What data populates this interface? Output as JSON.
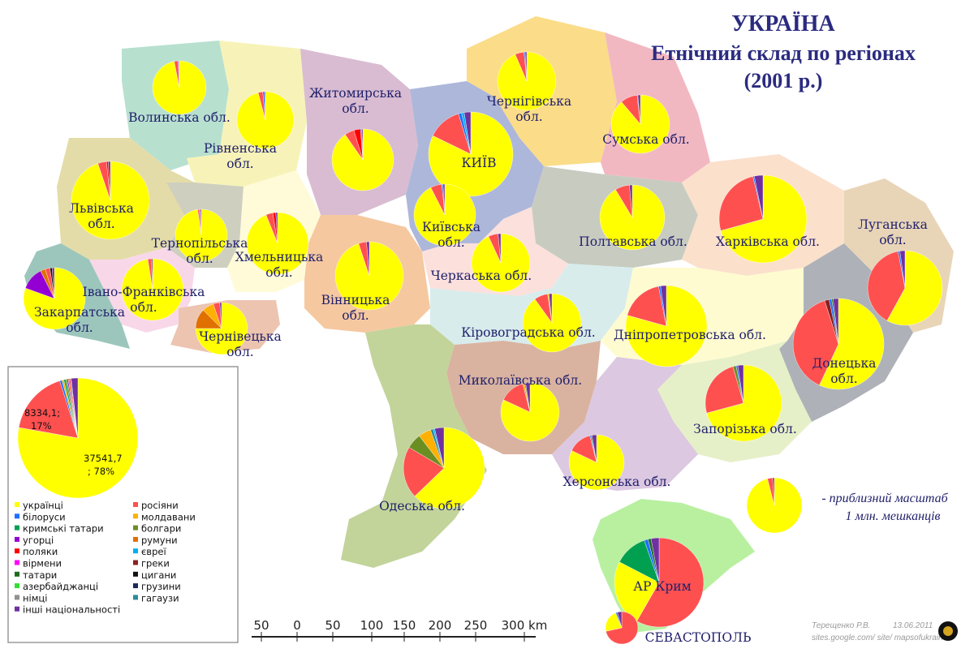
{
  "title": {
    "line1": "УКРАЇНА",
    "line2": "Етнічний склад по регіонах",
    "line3": "(2001 р.)"
  },
  "colors": {
    "українці": "#ffff00",
    "росіяни": "#ff5050",
    "білоруси": "#1f6fff",
    "молдавани": "#ffb000",
    "кримські татари": "#00a050",
    "болгари": "#6b8e23",
    "угорці": "#9400d3",
    "румуни": "#e07000",
    "поляки": "#ff0000",
    "євреї": "#00b0f0",
    "вірмени": "#ff00ff",
    "греки": "#8b2020",
    "татари": "#1e6b1e",
    "цигани": "#111111",
    "азербайджанці": "#33dd33",
    "грузини": "#1a2a5a",
    "німці": "#909090",
    "гагаузи": "#2e8b9a",
    "інші національності": "#7030a0"
  },
  "regions": [
    {
      "name": "Волинська обл.",
      "pie": "Волинська обл.",
      "label_lines": [
        "Волинська обл."
      ],
      "slices": [
        {
          "g": "українці",
          "v": 96.9
        },
        {
          "g": "росіяни",
          "v": 2.4
        },
        {
          "g": "білоруси",
          "v": 0.3
        },
        {
          "g": "інші національності",
          "v": 0.4
        }
      ]
    },
    {
      "name": "Рівненська обл.",
      "label_lines": [
        "Рівненська",
        "обл."
      ],
      "slices": [
        {
          "g": "українці",
          "v": 95.9
        },
        {
          "g": "росіяни",
          "v": 2.6
        },
        {
          "g": "білоруси",
          "v": 1.0
        },
        {
          "g": "інші національності",
          "v": 0.5
        }
      ]
    },
    {
      "name": "Житомирська обл.",
      "label_lines": [
        "Житомирська",
        "обл."
      ],
      "slices": [
        {
          "g": "українці",
          "v": 90.3
        },
        {
          "g": "росіяни",
          "v": 5.0
        },
        {
          "g": "поляки",
          "v": 3.5
        },
        {
          "g": "білоруси",
          "v": 0.6
        },
        {
          "g": "інші національності",
          "v": 0.6
        }
      ]
    },
    {
      "name": "Київ",
      "label_lines": [
        "КИЇВ"
      ],
      "slices": [
        {
          "g": "українці",
          "v": 82.2
        },
        {
          "g": "росіяни",
          "v": 13.1
        },
        {
          "g": "білоруси",
          "v": 1.2
        },
        {
          "g": "євреї",
          "v": 1.0
        },
        {
          "g": "інші національності",
          "v": 2.5
        }
      ]
    },
    {
      "name": "Чернігівська обл.",
      "label_lines": [
        "Чернігівська",
        "обл."
      ],
      "slices": [
        {
          "g": "українці",
          "v": 93.5
        },
        {
          "g": "росіяни",
          "v": 5.0
        },
        {
          "g": "білоруси",
          "v": 0.6
        },
        {
          "g": "інші національності",
          "v": 0.9
        }
      ]
    },
    {
      "name": "Сумська обл.",
      "label_lines": [
        "Сумська обл."
      ],
      "slices": [
        {
          "g": "українці",
          "v": 88.8
        },
        {
          "g": "росіяни",
          "v": 9.4
        },
        {
          "g": "білоруси",
          "v": 0.4
        },
        {
          "g": "інші національності",
          "v": 1.4
        }
      ]
    },
    {
      "name": "Львівська обл.",
      "label_lines": [
        "Львівська",
        "обл."
      ],
      "slices": [
        {
          "g": "українці",
          "v": 94.8
        },
        {
          "g": "росіяни",
          "v": 3.6
        },
        {
          "g": "поляки",
          "v": 0.7
        },
        {
          "g": "інші національності",
          "v": 0.9
        }
      ]
    },
    {
      "name": "Тернопільська обл.",
      "label_lines": [
        "Тернопільська",
        "обл."
      ],
      "slices": [
        {
          "g": "українці",
          "v": 97.8
        },
        {
          "g": "росіяни",
          "v": 1.2
        },
        {
          "g": "поляки",
          "v": 0.3
        },
        {
          "g": "інші національності",
          "v": 0.7
        }
      ]
    },
    {
      "name": "Хмельницька обл.",
      "label_lines": [
        "Хмельницька",
        "обл."
      ],
      "slices": [
        {
          "g": "українці",
          "v": 93.9
        },
        {
          "g": "росіяни",
          "v": 3.6
        },
        {
          "g": "поляки",
          "v": 1.6
        },
        {
          "g": "інші національності",
          "v": 0.9
        }
      ]
    },
    {
      "name": "Київська обл.",
      "label_lines": [
        "Київська",
        "обл."
      ],
      "slices": [
        {
          "g": "українці",
          "v": 92.5
        },
        {
          "g": "росіяни",
          "v": 6.0
        },
        {
          "g": "білоруси",
          "v": 0.6
        },
        {
          "g": "інші національності",
          "v": 0.9
        }
      ]
    },
    {
      "name": "Полтавська обл.",
      "label_lines": [
        "Полтавська обл."
      ],
      "slices": [
        {
          "g": "українці",
          "v": 91.4
        },
        {
          "g": "росіяни",
          "v": 7.2
        },
        {
          "g": "інші національності",
          "v": 1.4
        }
      ]
    },
    {
      "name": "Харківська обл.",
      "label_lines": [
        "Харківська обл."
      ],
      "slices": [
        {
          "g": "українці",
          "v": 70.7
        },
        {
          "g": "росіяни",
          "v": 25.6
        },
        {
          "g": "білоруси",
          "v": 0.5
        },
        {
          "g": "інші національності",
          "v": 3.2
        }
      ]
    },
    {
      "name": "Луганська обл.",
      "label_lines": [
        "Луганська",
        "обл."
      ],
      "slices": [
        {
          "g": "українці",
          "v": 58.0
        },
        {
          "g": "росіяни",
          "v": 39.0
        },
        {
          "g": "білоруси",
          "v": 0.8
        },
        {
          "g": "інші національності",
          "v": 2.2
        }
      ]
    },
    {
      "name": "Закарпатська обл.",
      "label_lines": [
        "Закарпатська",
        "обл."
      ],
      "slices": [
        {
          "g": "українці",
          "v": 80.5
        },
        {
          "g": "угорці",
          "v": 12.1
        },
        {
          "g": "румуни",
          "v": 2.6
        },
        {
          "g": "росіяни",
          "v": 2.5
        },
        {
          "g": "цигани",
          "v": 1.1
        },
        {
          "g": "інші національності",
          "v": 1.2
        }
      ]
    },
    {
      "name": "Івано-Франківська обл.",
      "label_lines": [
        "Івано-Франківська",
        "обл."
      ],
      "slices": [
        {
          "g": "українці",
          "v": 97.5
        },
        {
          "g": "росіяни",
          "v": 1.8
        },
        {
          "g": "інші національності",
          "v": 0.7
        }
      ]
    },
    {
      "name": "Чернівецька обл.",
      "label_lines": [
        "Чернівецька",
        "обл."
      ],
      "slices": [
        {
          "g": "українці",
          "v": 75.0
        },
        {
          "g": "румуни",
          "v": 12.5
        },
        {
          "g": "молдавани",
          "v": 7.3
        },
        {
          "g": "росіяни",
          "v": 4.1
        },
        {
          "g": "інші національності",
          "v": 1.1
        }
      ]
    },
    {
      "name": "Вінницька обл.",
      "label_lines": [
        "Вінницька",
        "обл."
      ],
      "slices": [
        {
          "g": "українці",
          "v": 94.9
        },
        {
          "g": "росіяни",
          "v": 3.8
        },
        {
          "g": "інші національності",
          "v": 1.3
        }
      ]
    },
    {
      "name": "Черкаська обл.",
      "label_lines": [
        "Черкаська обл."
      ],
      "slices": [
        {
          "g": "українці",
          "v": 93.1
        },
        {
          "g": "росіяни",
          "v": 5.4
        },
        {
          "g": "інші національності",
          "v": 1.5
        }
      ]
    },
    {
      "name": "Кіровоградська обл.",
      "label_lines": [
        "Кіровоградська обл."
      ],
      "slices": [
        {
          "g": "українці",
          "v": 90.1
        },
        {
          "g": "росіяни",
          "v": 7.5
        },
        {
          "g": "молдавани",
          "v": 0.8
        },
        {
          "g": "інші національності",
          "v": 1.6
        }
      ]
    },
    {
      "name": "Дніпропетровська обл.",
      "label_lines": [
        "Дніпропетровська обл."
      ],
      "slices": [
        {
          "g": "українці",
          "v": 79.3
        },
        {
          "g": "росіяни",
          "v": 17.6
        },
        {
          "g": "білоруси",
          "v": 0.8
        },
        {
          "g": "інші національності",
          "v": 2.3
        }
      ]
    },
    {
      "name": "Донецька обл.",
      "label_lines": [
        "Донецька",
        "обл."
      ],
      "slices": [
        {
          "g": "українці",
          "v": 56.9
        },
        {
          "g": "росіяни",
          "v": 38.2
        },
        {
          "g": "греки",
          "v": 1.6
        },
        {
          "g": "білоруси",
          "v": 0.9
        },
        {
          "g": "татари",
          "v": 0.5
        },
        {
          "g": "інші національності",
          "v": 1.9
        }
      ]
    },
    {
      "name": "Миколаївська обл.",
      "label_lines": [
        "Миколаївська обл."
      ],
      "slices": [
        {
          "g": "українці",
          "v": 81.9
        },
        {
          "g": "росіяни",
          "v": 14.1
        },
        {
          "g": "молдавани",
          "v": 1.0
        },
        {
          "g": "болгари",
          "v": 0.6
        },
        {
          "g": "інші національності",
          "v": 2.4
        }
      ]
    },
    {
      "name": "Запорізька обл.",
      "label_lines": [
        "Запорізька обл."
      ],
      "slices": [
        {
          "g": "українці",
          "v": 70.8
        },
        {
          "g": "росіяни",
          "v": 24.7
        },
        {
          "g": "болгари",
          "v": 1.4
        },
        {
          "g": "білоруси",
          "v": 0.7
        },
        {
          "g": "інші національності",
          "v": 2.4
        }
      ]
    },
    {
      "name": "Одеська обл.",
      "label_lines": [
        "Одеська обл."
      ],
      "slices": [
        {
          "g": "українці",
          "v": 62.8
        },
        {
          "g": "росіяни",
          "v": 20.7
        },
        {
          "g": "болгари",
          "v": 6.1
        },
        {
          "g": "молдавани",
          "v": 5.0
        },
        {
          "g": "гагаузи",
          "v": 1.1
        },
        {
          "g": "євреї",
          "v": 0.6
        },
        {
          "g": "інші національності",
          "v": 3.7
        }
      ]
    },
    {
      "name": "Херсонська обл.",
      "label_lines": [
        "Херсонська обл."
      ],
      "slices": [
        {
          "g": "українці",
          "v": 82.0
        },
        {
          "g": "росіяни",
          "v": 14.1
        },
        {
          "g": "білоруси",
          "v": 0.6
        },
        {
          "g": "татари",
          "v": 0.6
        },
        {
          "g": "інші національності",
          "v": 2.7
        }
      ]
    },
    {
      "name": "АР Крим",
      "label_lines": [
        "АР Крим"
      ],
      "slices": [
        {
          "g": "росіяни",
          "v": 58.3
        },
        {
          "g": "українці",
          "v": 24.3
        },
        {
          "g": "кримські татари",
          "v": 12.0
        },
        {
          "g": "білоруси",
          "v": 1.4
        },
        {
          "g": "татари",
          "v": 1.1
        },
        {
          "g": "інші національності",
          "v": 2.9
        }
      ]
    },
    {
      "name": "Севастополь",
      "label_lines": [
        "СЕВАСТОПОЛЬ"
      ],
      "slices": [
        {
          "g": "росіяни",
          "v": 71.6
        },
        {
          "g": "українці",
          "v": 22.4
        },
        {
          "g": "білоруси",
          "v": 1.6
        },
        {
          "g": "інші національності",
          "v": 4.4
        }
      ]
    }
  ],
  "total_pie": {
    "labels": {
      "ukr": "37541,7",
      "ukr_pct": "; 78%",
      "rus": "8334,1;",
      "rus_pct": "17%"
    },
    "slices": [
      {
        "g": "українці",
        "v": 77.8
      },
      {
        "g": "росіяни",
        "v": 17.3
      },
      {
        "g": "білоруси",
        "v": 0.6
      },
      {
        "g": "молдавани",
        "v": 0.5
      },
      {
        "g": "кримські татари",
        "v": 0.5
      },
      {
        "g": "болгари",
        "v": 0.4
      },
      {
        "g": "угорці",
        "v": 0.3
      },
      {
        "g": "румуни",
        "v": 0.3
      },
      {
        "g": "поляки",
        "v": 0.3
      },
      {
        "g": "євреї",
        "v": 0.2
      },
      {
        "g": "інші національності",
        "v": 1.8
      }
    ]
  },
  "legend": [
    [
      "українці",
      "росіяни"
    ],
    [
      "білоруси",
      "молдавани"
    ],
    [
      "кримські татари",
      "болгари"
    ],
    [
      "угорці",
      "румуни"
    ],
    [
      "поляки",
      "євреї"
    ],
    [
      "вірмени",
      "греки"
    ],
    [
      "татари",
      "цигани"
    ],
    [
      "азербайджанці",
      "грузини"
    ],
    [
      "німці",
      "гагаузи"
    ],
    [
      "інші національності",
      ""
    ]
  ],
  "scale": {
    "ticks": [
      "50",
      "0",
      "50",
      "100",
      "150",
      "200",
      "250",
      "300 km"
    ]
  },
  "scale_note": {
    "line1": "- приблизний масштаб",
    "line2": "1 млн. мешканців"
  },
  "credits": {
    "author": "Терещенко Р.В.",
    "date": "13.06.2011",
    "site": "sites.google.com/ site/ mapsofukraine"
  }
}
